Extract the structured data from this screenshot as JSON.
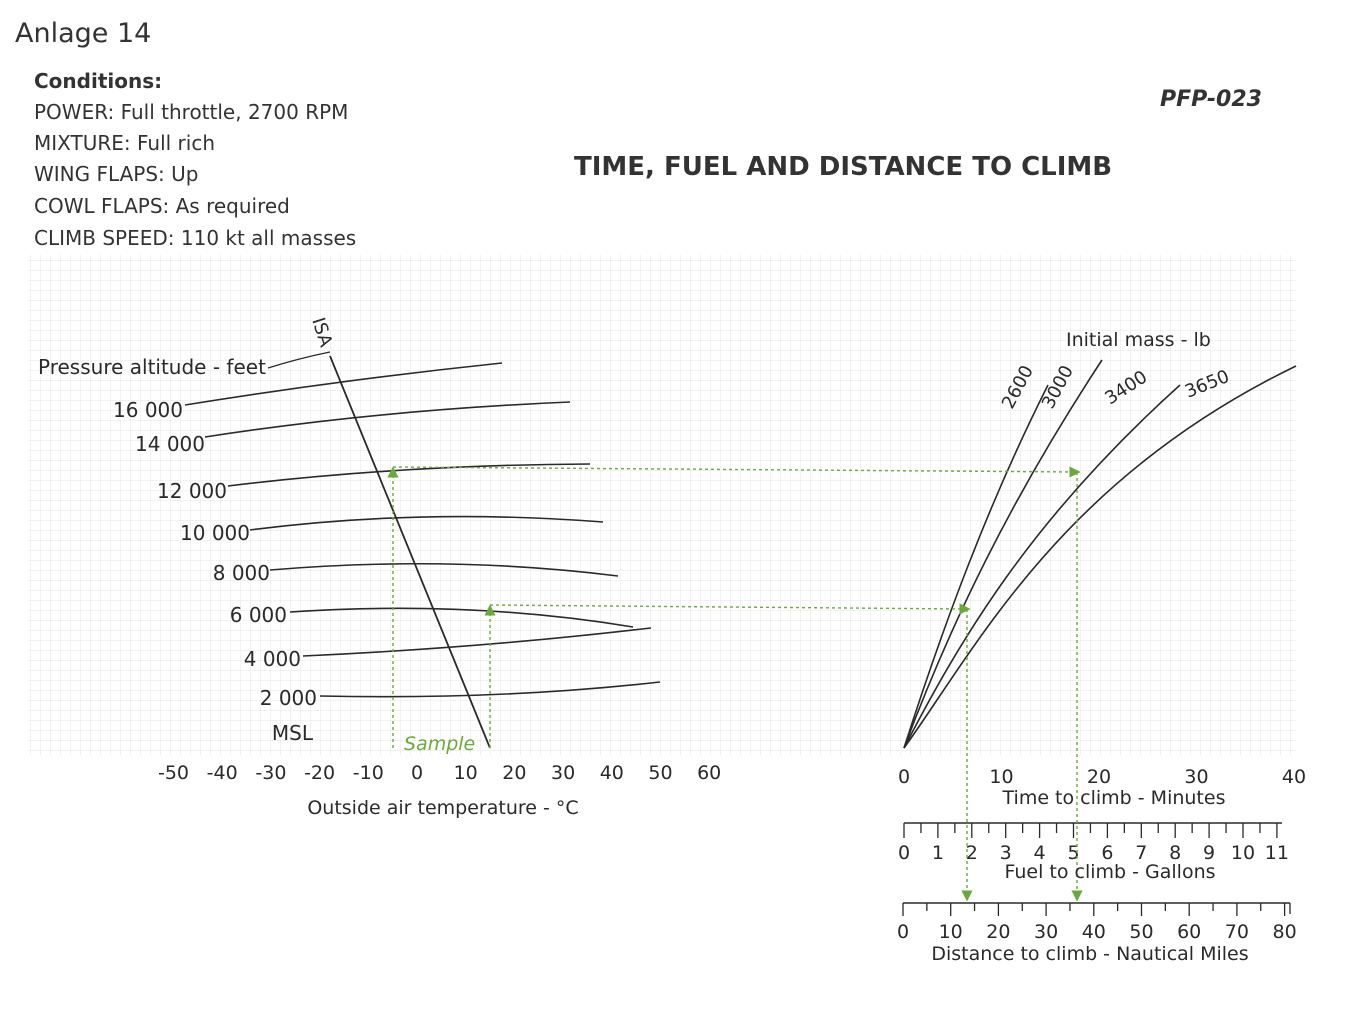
{
  "header": {
    "doc_label": "Anlage 14",
    "reference": "PFP-023",
    "title": "TIME, FUEL AND DISTANCE TO CLIMB"
  },
  "conditions": {
    "heading": "Conditions:",
    "lines": [
      "POWER: Full throttle, 2700 RPM",
      "MIXTURE: Full rich",
      "WING FLAPS: Up",
      "COWL FLAPS: As required",
      "CLIMB SPEED: 110 kt all masses"
    ]
  },
  "colors": {
    "ink": "#2a2a2a",
    "sample": "#6aaa3c",
    "grid": "#e4e4e4"
  },
  "chart_data": [
    {
      "type": "line",
      "panel": "altitude-temperature",
      "ylabel": "Pressure altitude - feet",
      "xlabel": "Outside air temperature - °C",
      "x_ticks": [
        "-50",
        "-40",
        "-30",
        "-20",
        "-10",
        "0",
        "10",
        "20",
        "30",
        "40",
        "50",
        "60"
      ],
      "xlim": [
        -50,
        60
      ],
      "altitude_labels": [
        "16 000",
        "14 000",
        "12 000",
        "10 000",
        "8 000",
        "6 000",
        "4 000",
        "2 000",
        "MSL"
      ],
      "isa_label": "ISA",
      "isa_line": {
        "x": [
          -17,
          15
        ],
        "y": [
          16000,
          0
        ]
      },
      "sample_label": "Sample",
      "sample_oat": [
        -5,
        15
      ]
    },
    {
      "type": "line",
      "panel": "time-to-climb",
      "legend_title": "Initial mass - lb",
      "series": [
        {
          "name": "2600"
        },
        {
          "name": "3000"
        },
        {
          "name": "3400"
        },
        {
          "name": "3650"
        }
      ],
      "xlabel": "Time to climb - Minutes",
      "x_ticks": [
        "0",
        "10",
        "20",
        "30",
        "40"
      ],
      "xlim": [
        0,
        40
      ],
      "sample_time_min": [
        6.5,
        17.7
      ]
    },
    {
      "type": "scale",
      "panel": "fuel",
      "label": "Fuel to climb - Gallons",
      "ticks": [
        "0",
        "1",
        "2",
        "3",
        "4",
        "5",
        "6",
        "7",
        "8",
        "9",
        "10",
        "11"
      ],
      "range": [
        0,
        11
      ],
      "sample_gallons": [
        2.6,
        6
      ]
    },
    {
      "type": "scale",
      "panel": "distance",
      "label": "Distance to climb - Nautical Miles",
      "ticks": [
        "0",
        "10",
        "20",
        "30",
        "40",
        "50",
        "60",
        "70",
        "80"
      ],
      "range": [
        0,
        80
      ],
      "sample_nm": [
        9,
        36
      ]
    }
  ]
}
